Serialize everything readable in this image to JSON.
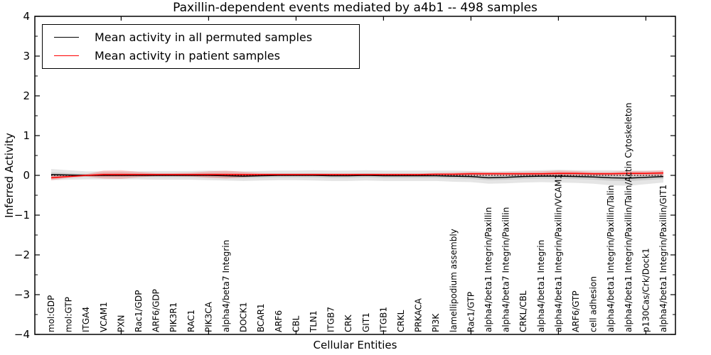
{
  "title": "Paxillin-dependent events mediated by a4b1 -- 498 samples",
  "xlabel": "Cellular Entities",
  "ylabel": "Inferred Activity",
  "legend": [
    {
      "label": "Mean activity in all permuted samples",
      "color": "#000000"
    },
    {
      "label": "Mean activity in patient samples",
      "color": "#ff0000"
    }
  ],
  "chart_data": {
    "type": "line",
    "title": "Paxillin-dependent events mediated by a4b1 -- 498 samples",
    "xlabel": "Cellular Entities",
    "ylabel": "Inferred Activity",
    "ylim": [
      -4,
      4
    ],
    "yticks": [
      -4,
      -3,
      -2,
      -1,
      0,
      1,
      2,
      3,
      4
    ],
    "grid": false,
    "legend_position": "upper left",
    "zero_line": {
      "y": 0,
      "style": "dotted",
      "color": "#000000"
    },
    "categories": [
      "mol:GDP",
      "mol:GTP",
      "ITGA4",
      "VCAM1",
      "PXN",
      "Rac1/GDP",
      "ARF6/GDP",
      "PIK3R1",
      "RAC1",
      "PIK3CA",
      "alpha4/beta7 Integrin",
      "DOCK1",
      "BCAR1",
      "ARF6",
      "CBL",
      "TLN1",
      "ITGB7",
      "CRK",
      "GIT1",
      "ITGB1",
      "CRKL",
      "PRKACA",
      "PI3K",
      "lamellipodium assembly",
      "Rac1/GTP",
      "alpha4/beta1 Integrin/Paxillin",
      "alpha4/beta7 Integrin/Paxillin",
      "CRKL/CBL",
      "alpha4/beta1 Integrin",
      "alpha4/beta1 Integrin/Paxillin/VCAM1",
      "ARF6/GTP",
      "cell adhesion",
      "alpha4/beta1 Integrin/Paxillin/Talin",
      "alpha4/beta1 Integrin/Paxillin/Talin/Actin Cytoskeleton",
      "p130Cas/Crk/Dock1",
      "alpha4/beta1 Integrin/Paxillin/GIT1"
    ],
    "series": [
      {
        "name": "Mean activity in all permuted samples",
        "color": "#000000",
        "band_color": "rgba(0,0,0,0.10)",
        "values": [
          0.02,
          0.01,
          0.0,
          0.0,
          0.0,
          0.0,
          0.0,
          0.0,
          0.0,
          0.0,
          -0.01,
          -0.02,
          -0.01,
          0.0,
          0.0,
          0.0,
          -0.01,
          -0.01,
          0.0,
          -0.01,
          -0.01,
          -0.01,
          -0.01,
          -0.02,
          -0.03,
          -0.06,
          -0.05,
          -0.03,
          -0.02,
          -0.02,
          -0.03,
          -0.04,
          -0.06,
          -0.07,
          -0.05,
          -0.03
        ],
        "std": [
          0.14,
          0.12,
          0.1,
          0.1,
          0.1,
          0.1,
          0.11,
          0.11,
          0.11,
          0.12,
          0.12,
          0.12,
          0.12,
          0.12,
          0.12,
          0.13,
          0.13,
          0.13,
          0.13,
          0.13,
          0.13,
          0.13,
          0.13,
          0.14,
          0.14,
          0.15,
          0.15,
          0.15,
          0.15,
          0.16,
          0.16,
          0.17,
          0.19,
          0.19,
          0.17,
          0.15
        ]
      },
      {
        "name": "Mean activity in patient samples",
        "color": "#ff0000",
        "band_color": "rgba(255,0,0,0.18)",
        "values": [
          -0.06,
          -0.03,
          0.0,
          0.02,
          0.02,
          0.02,
          0.02,
          0.02,
          0.02,
          0.02,
          0.02,
          0.02,
          0.02,
          0.02,
          0.02,
          0.02,
          0.02,
          0.02,
          0.02,
          0.02,
          0.02,
          0.02,
          0.03,
          0.03,
          0.04,
          0.04,
          0.04,
          0.04,
          0.04,
          0.05,
          0.05,
          0.04,
          0.04,
          0.05,
          0.05,
          0.06
        ],
        "std": [
          0.06,
          0.04,
          0.03,
          0.1,
          0.11,
          0.07,
          0.04,
          0.04,
          0.05,
          0.08,
          0.1,
          0.07,
          0.04,
          0.03,
          0.03,
          0.03,
          0.03,
          0.03,
          0.03,
          0.03,
          0.03,
          0.03,
          0.03,
          0.04,
          0.05,
          0.05,
          0.05,
          0.05,
          0.06,
          0.07,
          0.06,
          0.05,
          0.05,
          0.06,
          0.06,
          0.07
        ]
      }
    ]
  }
}
